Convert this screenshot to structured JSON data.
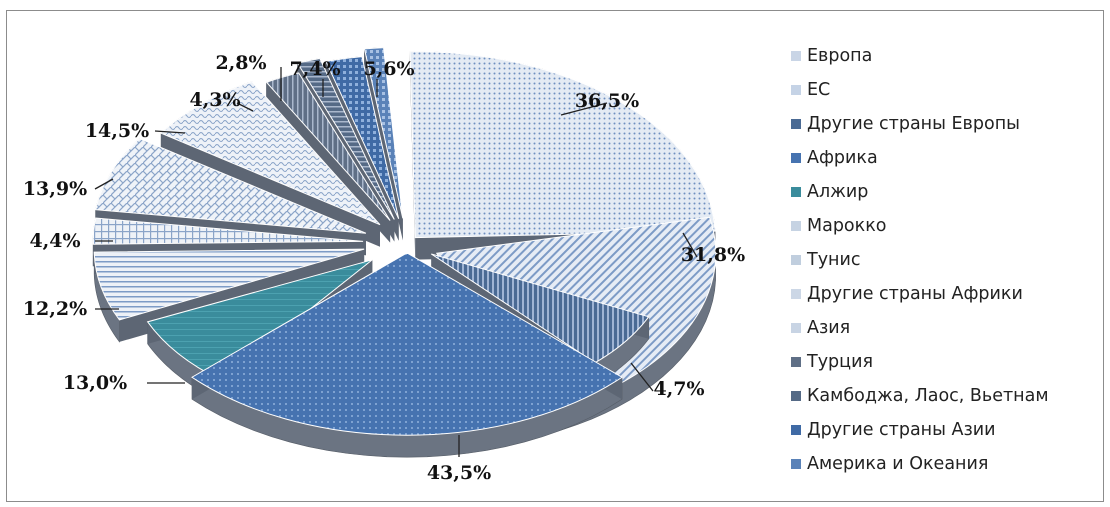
{
  "chart_data": {
    "type": "pie",
    "style": "exploded 3D pie with patterned fills",
    "title": "",
    "legend_position": "right",
    "categories": [
      "Европа",
      "ЕС",
      "Другие страны Европы",
      "Африка",
      "Алжир",
      "Марокко",
      "Тунис",
      "Другие страны Африки",
      "Азия",
      "Турция",
      "Камбоджа, Лаос, Вьетнам",
      "Другие страны Азии",
      "Америка и Океания"
    ],
    "slices": [
      {
        "category": "Европа",
        "label": "36,5%",
        "value": 36.5
      },
      {
        "category": "ЕС",
        "label": "31,8%",
        "value": 31.8
      },
      {
        "category": "Другие страны Европы",
        "label": "4,7%",
        "value": 4.7
      },
      {
        "category": "Африка",
        "label": "43,5%",
        "value": 43.5
      },
      {
        "category": "Алжир",
        "label": "13,0%",
        "value": 13.0
      },
      {
        "category": "Марокко",
        "label": "12,2%",
        "value": 12.2
      },
      {
        "category": "Тунис",
        "label": "4,4%",
        "value": 4.4
      },
      {
        "category": "Другие страны Африки",
        "label": "13,9%",
        "value": 13.9
      },
      {
        "category": "Азия",
        "label": "14,5%",
        "value": 14.5
      },
      {
        "category": "Турция",
        "label": "4,3%",
        "value": 4.3
      },
      {
        "category": "Камбоджа, Лаос, Вьетнам",
        "label": "2,8%",
        "value": 2.8
      },
      {
        "category": "Другие страны Азии",
        "label": "7,4%",
        "value": 7.4
      },
      {
        "category": "Америка и Океания",
        "label": "5,6%",
        "value": 5.6
      }
    ],
    "colors": {
      "Европа": "#c9d5e6",
      "ЕС": "#c5d3e6",
      "Другие страны Европы": "#4a6a94",
      "Африка": "#4673b0",
      "Алжир": "#3a8c9c",
      "Марокко": "#c6d3e3",
      "Тунис": "#c0cede",
      "Другие страны Африки": "#ccd7e6",
      "Азия": "#c8d4e4",
      "Турция": "#5f6f86",
      "Камбоджа, Лаос, Вьетнам": "#556a86",
      "Другие страны Азии": "#3f6aa5",
      "Америка и Океания": "#5a82b8"
    }
  }
}
